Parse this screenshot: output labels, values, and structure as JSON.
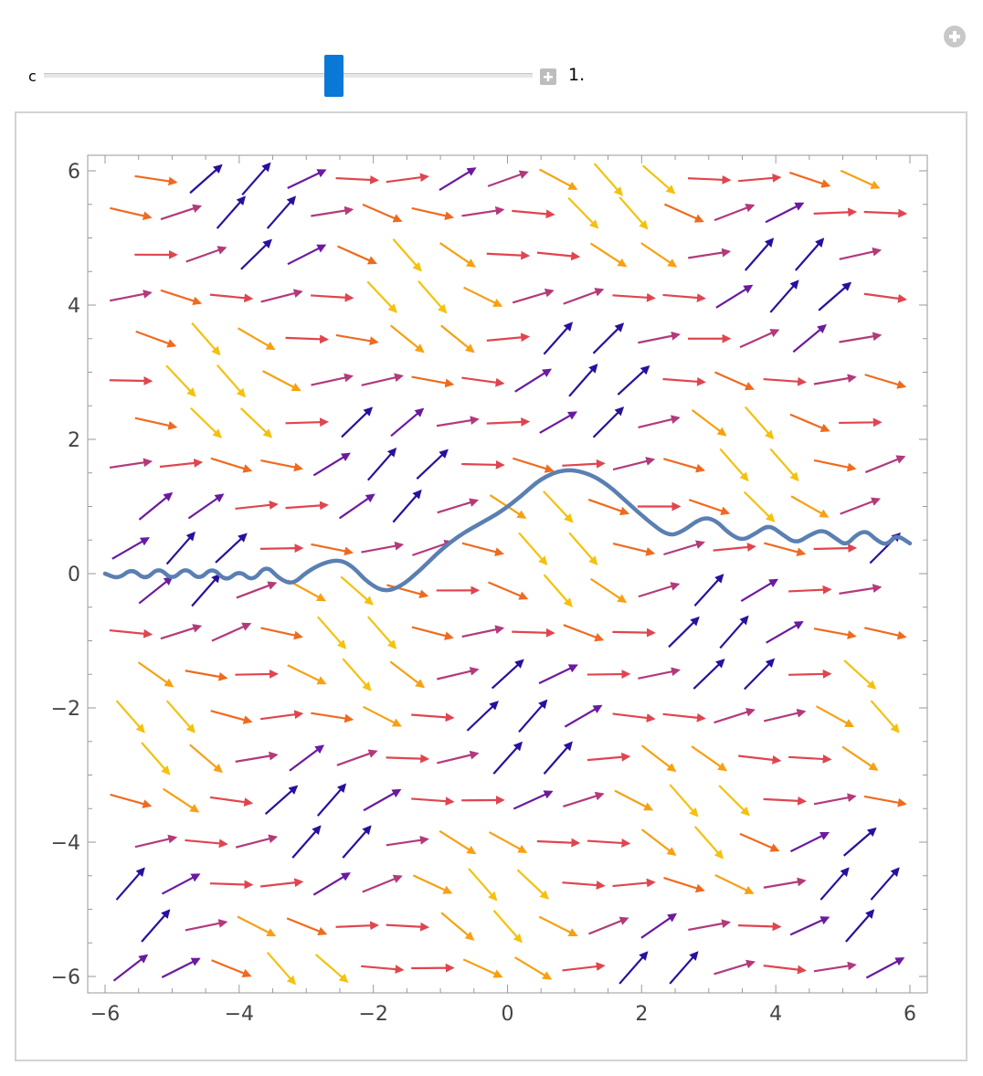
{
  "controls": {
    "slider_label": "c",
    "slider_value_text": "1.",
    "slider_value": 1.0,
    "slider_fraction": 0.59,
    "thumb_color": "#0a78d7"
  },
  "icons": {
    "corner": "plus-circle-icon",
    "expand": "plus-square-icon"
  },
  "chart_data": {
    "type": "vector-field-with-curve",
    "xlim": [
      -6,
      6
    ],
    "ylim": [
      -6,
      6
    ],
    "xticks": [
      -6,
      -4,
      -2,
      0,
      2,
      4,
      6
    ],
    "yticks": [
      -6,
      -4,
      -2,
      0,
      2,
      4,
      6
    ],
    "xtick_labels": [
      "−6",
      "−4",
      "−2",
      "0",
      "2",
      "4",
      "6"
    ],
    "ytick_labels": [
      "−6",
      "−4",
      "−2",
      "0",
      "2",
      "4",
      "6"
    ],
    "frame": true,
    "grid": false,
    "arrow_grid_x": [
      -5.625,
      -5.25,
      -4.875,
      -4.5,
      -4.125,
      -3.75,
      -3.375,
      -3.0,
      -2.625,
      -2.25,
      -1.875,
      -1.5,
      -1.125,
      -0.75,
      -0.375,
      0.0,
      0.375,
      0.75,
      1.125,
      1.5,
      1.875,
      2.25,
      2.625,
      3.0,
      3.375,
      3.75,
      4.125,
      4.5,
      4.875,
      5.25,
      5.625
    ],
    "arrow_grid_y": [
      -5.875,
      -5.25,
      -4.625,
      -4.0,
      -3.375,
      -2.75,
      -2.125,
      -1.5,
      -0.875,
      -0.25,
      0.375,
      1.0,
      1.625,
      2.25,
      2.875,
      3.5,
      4.125,
      4.75,
      5.375,
      5.875
    ],
    "arrow_colors": [
      "#2a0f9e",
      "#6b1aa0",
      "#b33a7a",
      "#e0454f",
      "#f06a1e",
      "#f8a012",
      "#f5c10c"
    ],
    "curve": {
      "color": "#5a7fb2",
      "points": [
        [
          -6.0,
          0.0
        ],
        [
          -5.8,
          -0.08
        ],
        [
          -5.6,
          0.08
        ],
        [
          -5.4,
          -0.1
        ],
        [
          -5.2,
          0.1
        ],
        [
          -5.0,
          -0.1
        ],
        [
          -4.8,
          0.1
        ],
        [
          -4.6,
          -0.1
        ],
        [
          -4.4,
          0.1
        ],
        [
          -4.2,
          -0.12
        ],
        [
          -4.0,
          0.05
        ],
        [
          -3.8,
          -0.12
        ],
        [
          -3.6,
          0.13
        ],
        [
          -3.4,
          -0.08
        ],
        [
          -3.2,
          -0.16
        ],
        [
          -3.0,
          0.02
        ],
        [
          -2.75,
          0.16
        ],
        [
          -2.5,
          0.21
        ],
        [
          -2.3,
          0.1
        ],
        [
          -2.1,
          -0.12
        ],
        [
          -1.85,
          -0.27
        ],
        [
          -1.6,
          -0.2
        ],
        [
          -1.3,
          0.05
        ],
        [
          -1.0,
          0.35
        ],
        [
          -0.7,
          0.58
        ],
        [
          -0.4,
          0.75
        ],
        [
          -0.1,
          0.92
        ],
        [
          0.2,
          1.15
        ],
        [
          0.5,
          1.42
        ],
        [
          0.85,
          1.56
        ],
        [
          1.2,
          1.5
        ],
        [
          1.5,
          1.32
        ],
        [
          1.8,
          1.05
        ],
        [
          2.1,
          0.78
        ],
        [
          2.4,
          0.56
        ],
        [
          2.6,
          0.62
        ],
        [
          2.9,
          0.84
        ],
        [
          3.1,
          0.8
        ],
        [
          3.3,
          0.6
        ],
        [
          3.5,
          0.49
        ],
        [
          3.7,
          0.6
        ],
        [
          3.9,
          0.73
        ],
        [
          4.1,
          0.58
        ],
        [
          4.3,
          0.45
        ],
        [
          4.5,
          0.57
        ],
        [
          4.7,
          0.66
        ],
        [
          4.9,
          0.52
        ],
        [
          5.05,
          0.42
        ],
        [
          5.2,
          0.58
        ],
        [
          5.35,
          0.64
        ],
        [
          5.5,
          0.5
        ],
        [
          5.65,
          0.42
        ],
        [
          5.8,
          0.58
        ],
        [
          6.0,
          0.45
        ]
      ]
    }
  }
}
